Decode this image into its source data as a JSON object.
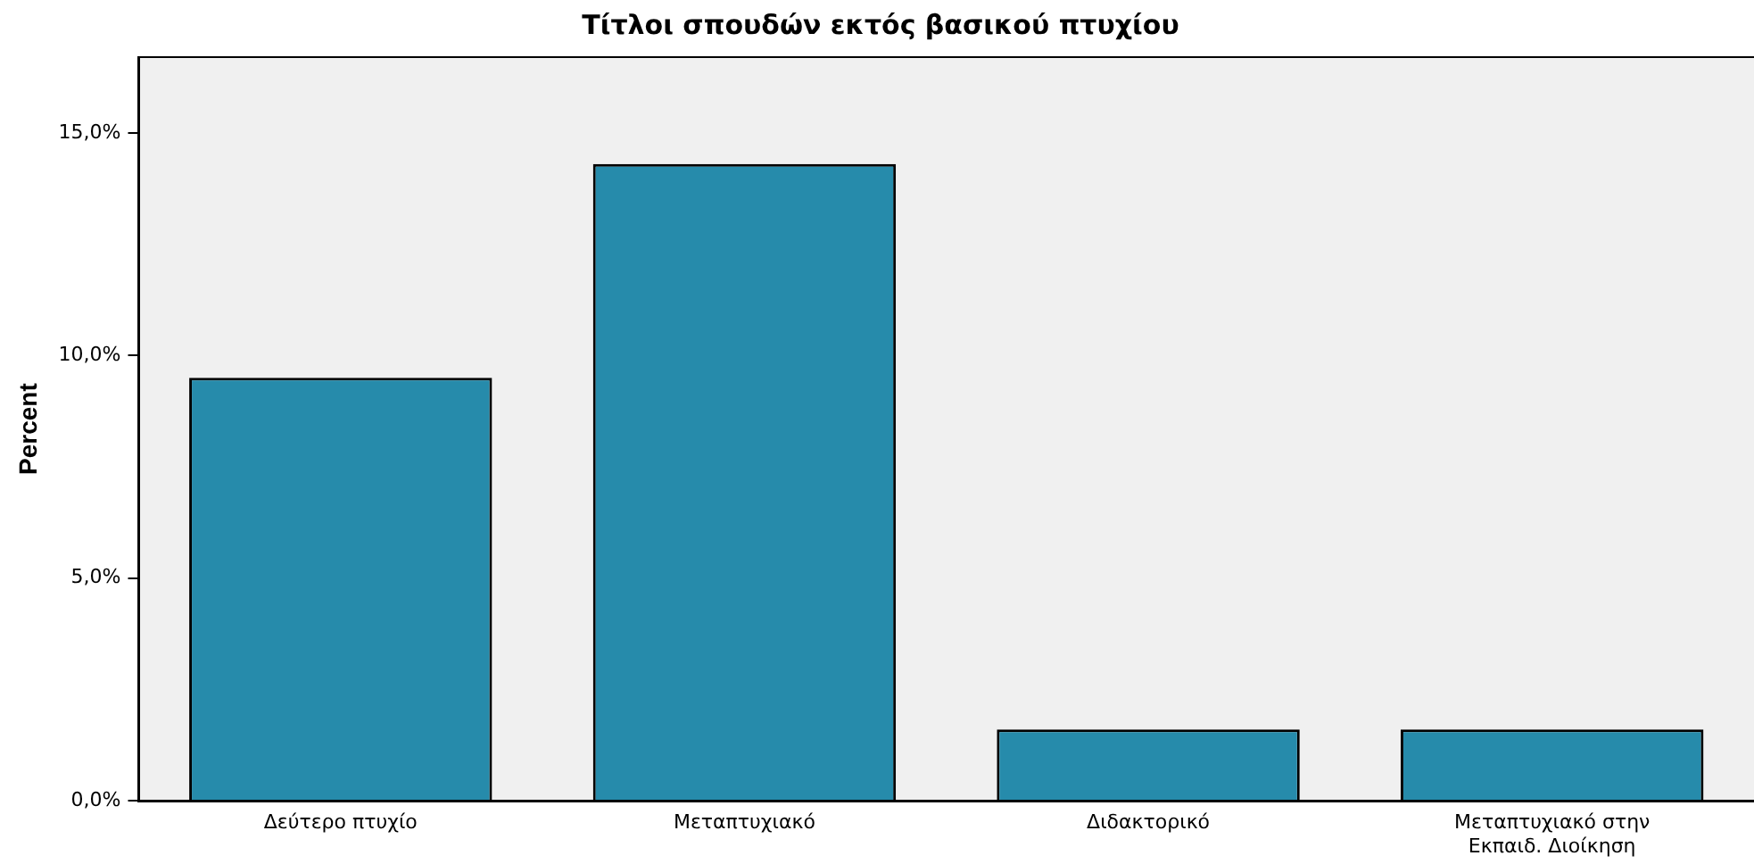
{
  "chart_data": {
    "type": "bar",
    "title": "Τίτλοι σπουδών εκτός βασικού πτυχίου",
    "ylabel": "Percent",
    "categories": [
      "Δεύτερο πτυχίο",
      "Μεταπτυχιακό",
      "Διδακτορικό",
      "Μεταπτυχιακό στην Εκπαιδ. Διοίκηση"
    ],
    "values": [
      9.5,
      14.3,
      1.6,
      1.6
    ],
    "color": "#268bab",
    "ylim": [
      0,
      16.7
    ],
    "yticks": [
      {
        "value": 0,
        "label": "0,0%"
      },
      {
        "value": 5,
        "label": "5,0%"
      },
      {
        "value": 10,
        "label": "10,0%"
      },
      {
        "value": 15,
        "label": "15,0%"
      }
    ],
    "grid": false,
    "legend": false
  }
}
